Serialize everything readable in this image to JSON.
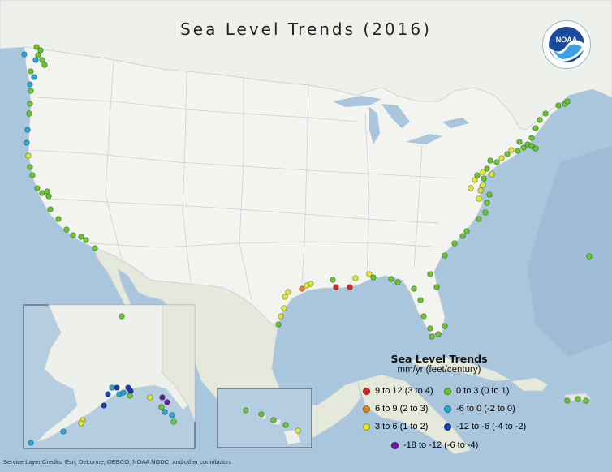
{
  "title": "Sea Level Trends (2016)",
  "logo_text": "NOAA",
  "legend": {
    "title": "Sea Level Trends",
    "subtitle": "mm/yr (feet/century)",
    "items": [
      {
        "label": "9 to 12 (3 to 4)",
        "color": "#d42a1f"
      },
      {
        "label": "6 to 9 (2 to 3)",
        "color": "#e0861e"
      },
      {
        "label": "3 to 6 (1 to 2)",
        "color": "#dfe82a"
      },
      {
        "label": "0 to 3 (0 to 1)",
        "color": "#66c82c"
      },
      {
        "label": "-6 to 0 (-2 to 0)",
        "color": "#26a9d8"
      },
      {
        "label": "-12 to -6 (-4 to -2)",
        "color": "#1b3fb0"
      },
      {
        "label": "-18 to -12 (-6 to -4)",
        "color": "#6a1b9a"
      }
    ]
  },
  "credits": "Service Layer Credits: Esri, DeLorme, GEBCO, NOAA NGDC, and other contributors",
  "colors": {
    "ocean": "#a9c6dd",
    "land": "#efefec",
    "mexico": "#e3e8d8"
  }
}
